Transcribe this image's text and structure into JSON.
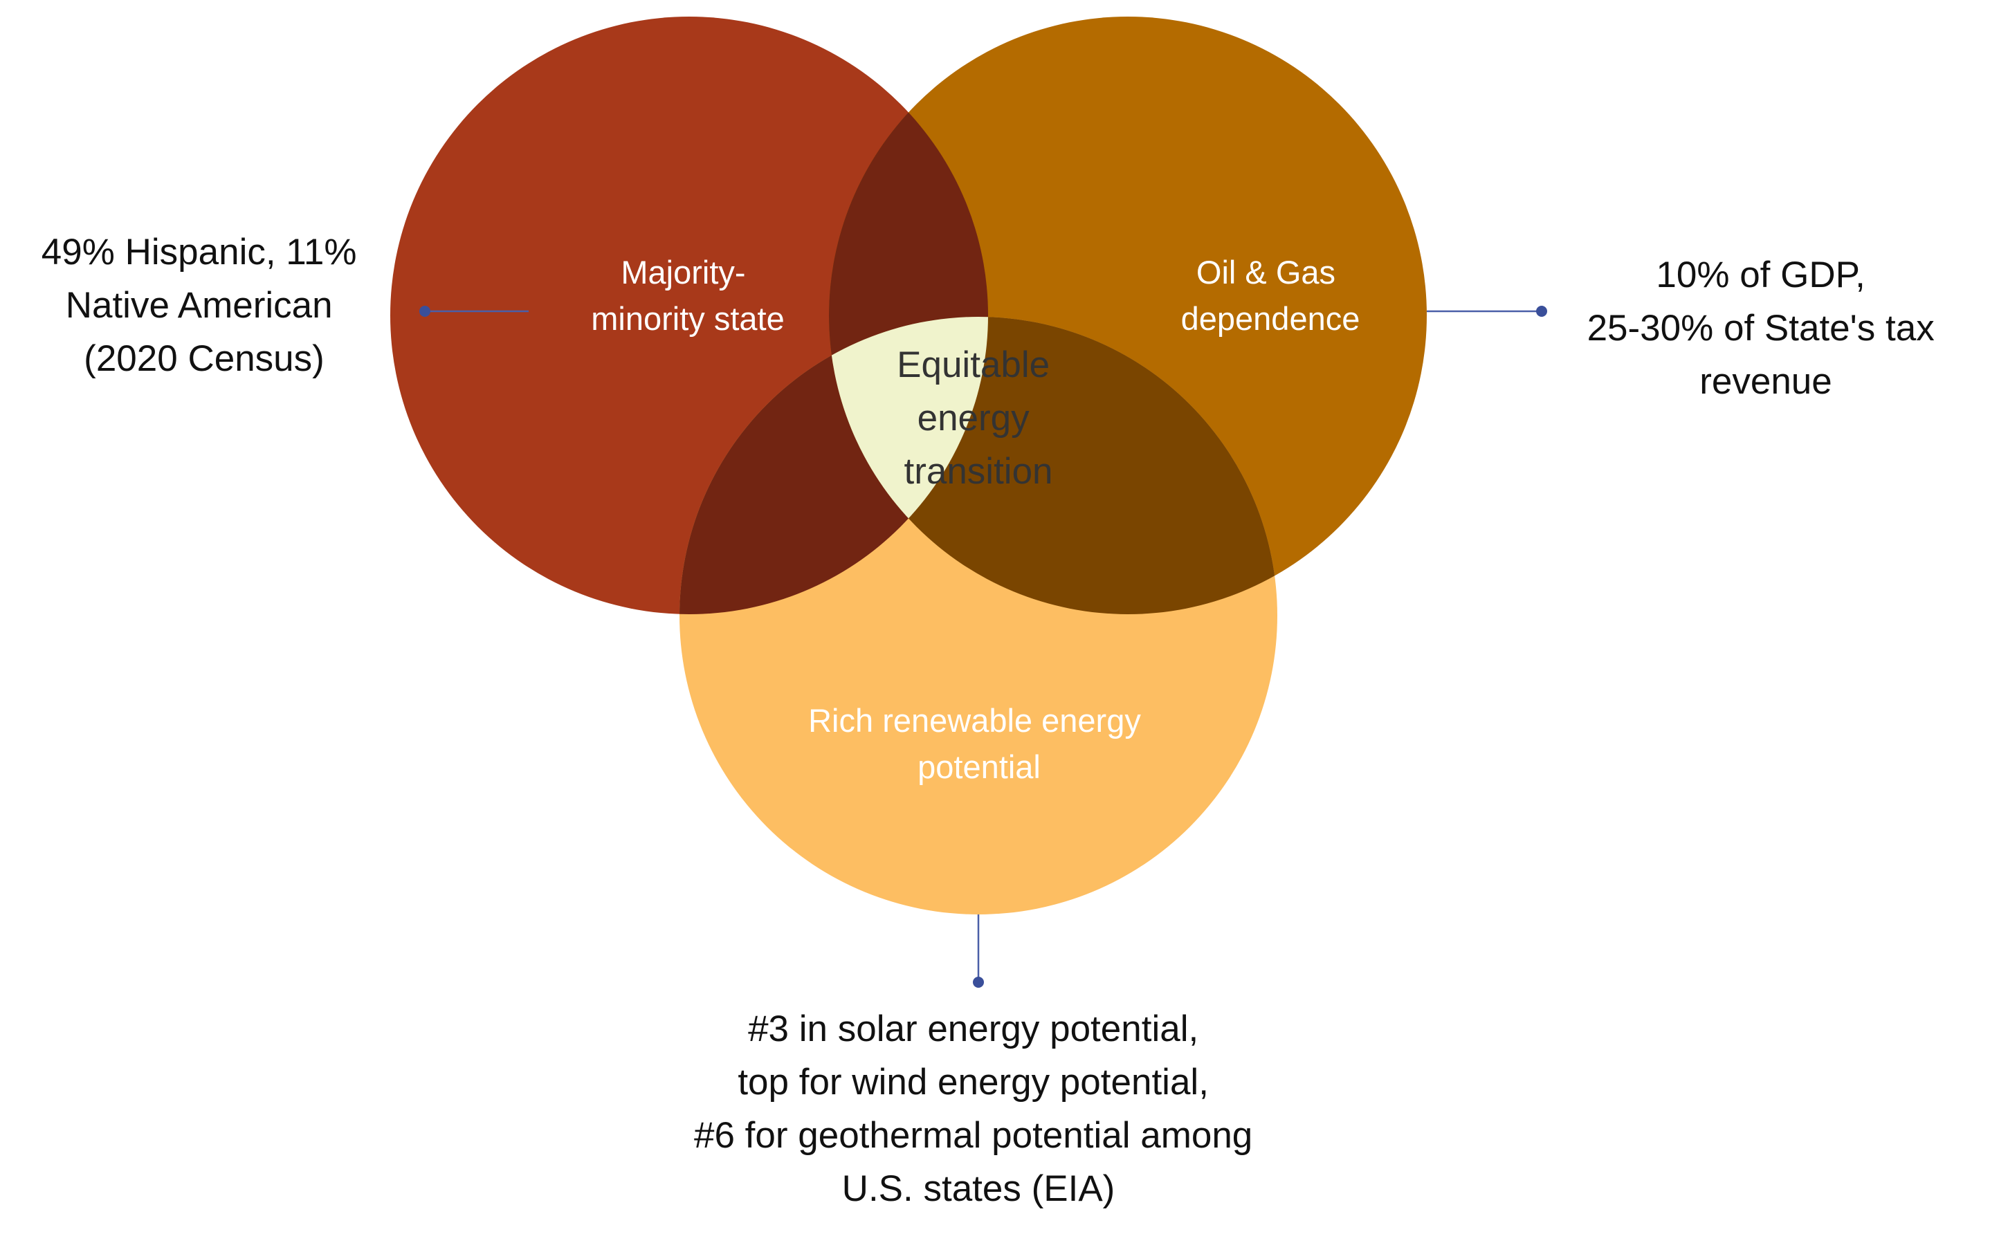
{
  "colors": {
    "circle_left": "#A8391A",
    "circle_right": "#B46B00",
    "circle_bottom": "#FDBE62",
    "overlap_left_right": "#722512",
    "overlap_left_bottom": "#722512",
    "overlap_right_bottom": "#7A4500",
    "overlap_center": "#F0F3CC",
    "connector": "#3A4F9A"
  },
  "sets": {
    "left": {
      "label": [
        "Majority-",
        "minority state"
      ]
    },
    "right": {
      "label": [
        "Oil & Gas",
        "dependence"
      ]
    },
    "bottom": {
      "label": [
        "Rich renewable energy",
        "potential"
      ]
    }
  },
  "center": {
    "label": [
      "Equitable",
      "energy",
      "transition"
    ]
  },
  "annotations": {
    "left": [
      "49% Hispanic, 11%",
      "Native American",
      "(2020 Census)"
    ],
    "right": [
      "10% of GDP,",
      "25-30% of State's tax",
      "revenue"
    ],
    "bottom": [
      "#3 in solar energy potential,",
      "top for wind energy potential,",
      "#6 for geothermal potential among",
      "U.S. states (EIA)"
    ]
  }
}
